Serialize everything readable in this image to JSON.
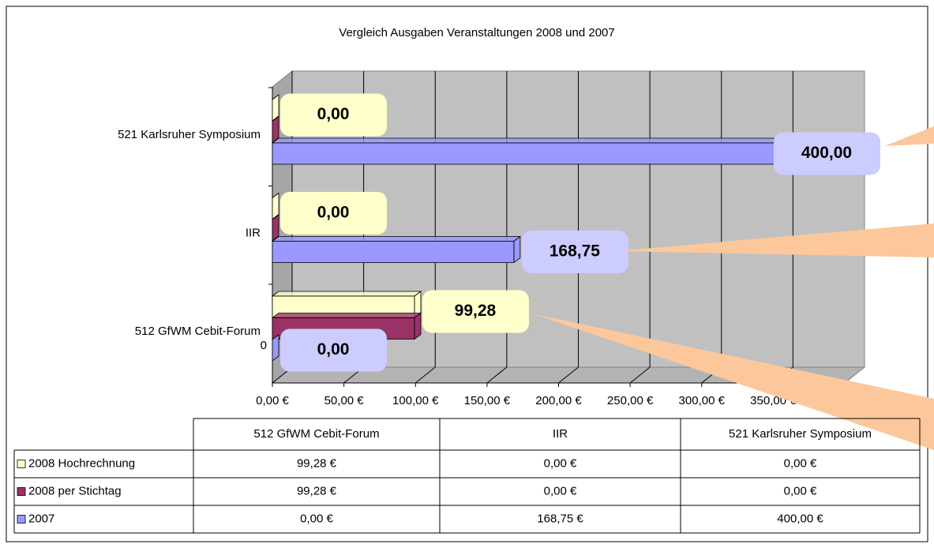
{
  "chart_data": {
    "type": "bar",
    "orientation": "horizontal",
    "title": "Vergleich Ausgaben Veranstaltungen 2008 und 2007",
    "categories": [
      "512 GfWM Cebit-Forum",
      "IIR",
      "521 Karlsruher Symposium"
    ],
    "series": [
      {
        "name": "2008 Hochrechnung",
        "color": "#ffffcc",
        "values": [
          99.28,
          0,
          0
        ],
        "value_labels": [
          "99,28 €",
          "0,00 €",
          "0,00 €"
        ],
        "data_labels": [
          "99,28",
          "0,00",
          "0,00"
        ]
      },
      {
        "name": "2008 per Stichtag",
        "color": "#993366",
        "values": [
          99.28,
          0,
          0
        ],
        "value_labels": [
          "99,28 €",
          "0,00 €",
          "0,00 €"
        ]
      },
      {
        "name": "2007",
        "color": "#9999ff",
        "values": [
          0,
          168.75,
          400
        ],
        "value_labels": [
          "0,00 €",
          "168,75 €",
          "400,00 €"
        ],
        "data_labels": [
          "0,00",
          "168,75",
          "400,00"
        ]
      }
    ],
    "xlim": [
      0,
      400
    ],
    "xticks": [
      {
        "value": 0,
        "label": "0,00 €"
      },
      {
        "value": 50,
        "label": "50,00 €"
      },
      {
        "value": 100,
        "label": "100,00 €"
      },
      {
        "value": 150,
        "label": "150,00 €"
      },
      {
        "value": 200,
        "label": "200,00 €"
      },
      {
        "value": 250,
        "label": "250,00 €"
      },
      {
        "value": 300,
        "label": "300,00 €"
      },
      {
        "value": 350,
        "label": "350,00 €"
      }
    ],
    "annotation": "0",
    "grid": true,
    "data_table": true
  }
}
